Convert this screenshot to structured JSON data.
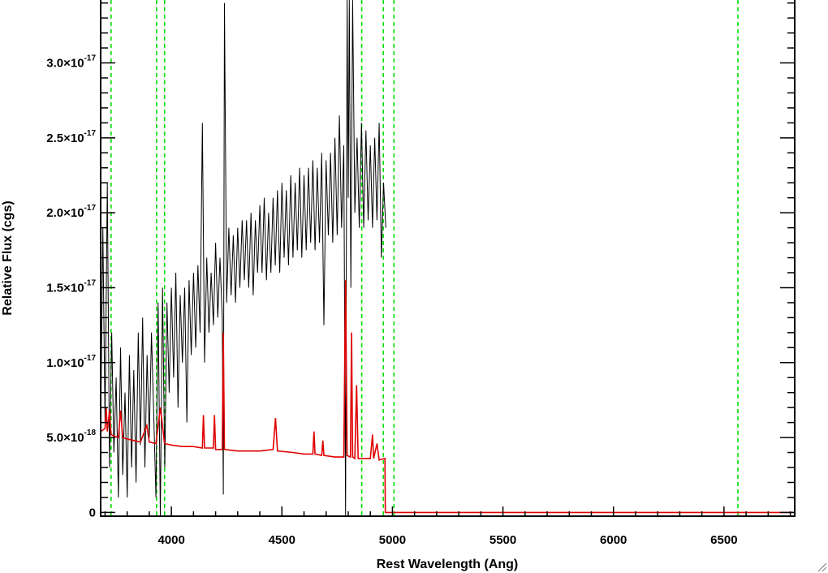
{
  "chart_data": {
    "type": "line",
    "xlabel": "Rest Wavelength (Ang)",
    "ylabel": "Relative Flux (cgs)",
    "xlim": [
      3680,
      6820
    ],
    "ylim": [
      -2.5e-19,
      3.42e-17
    ],
    "x_ticks": [
      {
        "value": 4000,
        "label": "4000"
      },
      {
        "value": 4500,
        "label": "4500"
      },
      {
        "value": 5000,
        "label": "5000"
      },
      {
        "value": 5500,
        "label": "5500"
      },
      {
        "value": 6000,
        "label": "6000"
      },
      {
        "value": 6500,
        "label": "6500"
      }
    ],
    "y_ticks": [
      {
        "value": 0,
        "mantissa": "0",
        "exponent": ""
      },
      {
        "value": 5e-18,
        "mantissa": "5.0×10",
        "exponent": "-18"
      },
      {
        "value": 1e-17,
        "mantissa": "1.0×10",
        "exponent": "-17"
      },
      {
        "value": 1.5e-17,
        "mantissa": "1.5×10",
        "exponent": "-17"
      },
      {
        "value": 2e-17,
        "mantissa": "2.0×10",
        "exponent": "-17"
      },
      {
        "value": 2.5e-17,
        "mantissa": "2.5×10",
        "exponent": "-17"
      },
      {
        "value": 3e-17,
        "mantissa": "3.0×10",
        "exponent": "-17"
      }
    ],
    "grid": false,
    "reference_lines": {
      "orientation": "vertical",
      "style": "dashed",
      "color": "#00dd00",
      "x": [
        3727,
        3933,
        3969,
        4861,
        4959,
        5007,
        6563
      ]
    },
    "series": [
      {
        "role": "observed spectrum",
        "color": "#000000",
        "points": [
          [
            3680,
            5.2e-18
          ],
          [
            3690,
            1.9e-17
          ],
          [
            3700,
            6e-18
          ],
          [
            3710,
            2.2e-17
          ],
          [
            3720,
            3e-18
          ],
          [
            3730,
            1.2e-17
          ],
          [
            3740,
            4e-18
          ],
          [
            3750,
            9e-18
          ],
          [
            3760,
            1e-18
          ],
          [
            3770,
            1.1e-17
          ],
          [
            3780,
            2.5e-18
          ],
          [
            3790,
            8e-18
          ],
          [
            3800,
            1e-18
          ],
          [
            3810,
            1.05e-17
          ],
          [
            3820,
            3e-18
          ],
          [
            3830,
            9.5e-18
          ],
          [
            3840,
            2e-18
          ],
          [
            3850,
            1.2e-17
          ],
          [
            3860,
            4.5e-18
          ],
          [
            3870,
            1.3e-17
          ],
          [
            3880,
            3e-18
          ],
          [
            3890,
            1.05e-17
          ],
          [
            3900,
            5e-18
          ],
          [
            3910,
            1.2e-17
          ],
          [
            3920,
            6.5e-18
          ],
          [
            3930,
            1e-18
          ],
          [
            3940,
            1.4e-17
          ],
          [
            3950,
            -2e-19
          ],
          [
            3960,
            1.5e-17
          ],
          [
            3970,
            3e-18
          ],
          [
            3980,
            1.4e-17
          ],
          [
            3990,
            8e-18
          ],
          [
            4000,
            1.5e-17
          ],
          [
            4010,
            9e-18
          ],
          [
            4020,
            1.6e-17
          ],
          [
            4030,
            7e-18
          ],
          [
            4040,
            1.45e-17
          ],
          [
            4050,
            1e-17
          ],
          [
            4060,
            1.5e-17
          ],
          [
            4070,
            6e-18
          ],
          [
            4080,
            1.55e-17
          ],
          [
            4090,
            1.05e-17
          ],
          [
            4100,
            1.6e-17
          ],
          [
            4110,
            1.1e-17
          ],
          [
            4120,
            1.65e-17
          ],
          [
            4130,
            1.2e-17
          ],
          [
            4140,
            2.6e-17
          ],
          [
            4150,
            1e-17
          ],
          [
            4160,
            1.7e-17
          ],
          [
            4170,
            1.2e-17
          ],
          [
            4180,
            1.6e-17
          ],
          [
            4190,
            1.25e-17
          ],
          [
            4200,
            1.8e-17
          ],
          [
            4210,
            1.3e-17
          ],
          [
            4220,
            1.7e-17
          ],
          [
            4230,
            1.3e-17
          ],
          [
            4235,
            1.2e-18
          ],
          [
            4240,
            3.4e-17
          ],
          [
            4250,
            1.4e-17
          ],
          [
            4260,
            1.9e-17
          ],
          [
            4270,
            1.45e-17
          ],
          [
            4280,
            1.85e-17
          ],
          [
            4290,
            1.4e-17
          ],
          [
            4300,
            1.9e-17
          ],
          [
            4310,
            1.5e-17
          ],
          [
            4320,
            1.95e-17
          ],
          [
            4330,
            1.55e-17
          ],
          [
            4340,
            1.95e-17
          ],
          [
            4350,
            1.5e-17
          ],
          [
            4360,
            2e-17
          ],
          [
            4370,
            1.45e-17
          ],
          [
            4380,
            1.95e-17
          ],
          [
            4390,
            1.6e-17
          ],
          [
            4400,
            2.05e-17
          ],
          [
            4410,
            1.6e-17
          ],
          [
            4420,
            2.1e-17
          ],
          [
            4430,
            1.55e-17
          ],
          [
            4440,
            2e-17
          ],
          [
            4450,
            1.6e-17
          ],
          [
            4460,
            2.1e-17
          ],
          [
            4470,
            1.65e-17
          ],
          [
            4480,
            2.15e-17
          ],
          [
            4490,
            1.6e-17
          ],
          [
            4500,
            2.2e-17
          ],
          [
            4510,
            1.7e-17
          ],
          [
            4520,
            2.15e-17
          ],
          [
            4530,
            1.65e-17
          ],
          [
            4540,
            2.25e-17
          ],
          [
            4550,
            1.7e-17
          ],
          [
            4560,
            2.2e-17
          ],
          [
            4570,
            1.75e-17
          ],
          [
            4580,
            2.3e-17
          ],
          [
            4590,
            1.7e-17
          ],
          [
            4600,
            2.25e-17
          ],
          [
            4610,
            1.75e-17
          ],
          [
            4620,
            2.3e-17
          ],
          [
            4630,
            1.8e-17
          ],
          [
            4640,
            2.35e-17
          ],
          [
            4650,
            1.75e-17
          ],
          [
            4660,
            2.3e-17
          ],
          [
            4670,
            1.8e-17
          ],
          [
            4680,
            2.4e-17
          ],
          [
            4690,
            1.25e-17
          ],
          [
            4700,
            2.35e-17
          ],
          [
            4710,
            1.85e-17
          ],
          [
            4720,
            2.4e-17
          ],
          [
            4730,
            1.8e-17
          ],
          [
            4740,
            2.5e-17
          ],
          [
            4750,
            1.85e-17
          ],
          [
            4760,
            2.65e-17
          ],
          [
            4770,
            1.9e-17
          ],
          [
            4780,
            2.45e-17
          ],
          [
            4788,
            -2.5e-19
          ],
          [
            4795,
            3.42e-17
          ],
          [
            4800,
            2.1e-17
          ],
          [
            4805,
            3.42e-17
          ],
          [
            4812,
            1.5e-17
          ],
          [
            4820,
            3.42e-17
          ],
          [
            4830,
            2e-17
          ],
          [
            4840,
            2.5e-17
          ],
          [
            4850,
            1.9e-17
          ],
          [
            4860,
            2.6e-17
          ],
          [
            4870,
            1.9e-17
          ],
          [
            4880,
            2.55e-17
          ],
          [
            4890,
            1.95e-17
          ],
          [
            4900,
            2.45e-17
          ],
          [
            4910,
            1.9e-17
          ],
          [
            4920,
            2.5e-17
          ],
          [
            4930,
            1.95e-17
          ],
          [
            4940,
            2.6e-17
          ],
          [
            4950,
            1.7e-17
          ],
          [
            4960,
            2.2e-17
          ],
          [
            4970,
            1.9e-17
          ]
        ]
      },
      {
        "role": "model spectrum",
        "color": "#e00000",
        "points": [
          [
            3680,
            5.4e-18
          ],
          [
            3700,
            5.6e-18
          ],
          [
            3705,
            7e-18
          ],
          [
            3710,
            5.4e-18
          ],
          [
            3720,
            6.8e-18
          ],
          [
            3727,
            5.2e-18
          ],
          [
            3740,
            5.1e-18
          ],
          [
            3760,
            5e-18
          ],
          [
            3770,
            6.8e-18
          ],
          [
            3780,
            5e-18
          ],
          [
            3800,
            4.9e-18
          ],
          [
            3830,
            4.8e-18
          ],
          [
            3860,
            4.7e-18
          ],
          [
            3889,
            5.8e-18
          ],
          [
            3900,
            4.7e-18
          ],
          [
            3930,
            4.6e-18
          ],
          [
            3950,
            7e-18
          ],
          [
            3969,
            4.6e-18
          ],
          [
            4000,
            4.5e-18
          ],
          [
            4050,
            4.4e-18
          ],
          [
            4100,
            4.4e-18
          ],
          [
            4140,
            4.3e-18
          ],
          [
            4145,
            6.5e-18
          ],
          [
            4150,
            4.3e-18
          ],
          [
            4190,
            4.3e-18
          ],
          [
            4195,
            6.5e-18
          ],
          [
            4200,
            4.2e-18
          ],
          [
            4230,
            4.2e-18
          ],
          [
            4235,
            1.2e-17
          ],
          [
            4240,
            4.2e-18
          ],
          [
            4300,
            4.1e-18
          ],
          [
            4400,
            4.1e-18
          ],
          [
            4460,
            4.2e-18
          ],
          [
            4471,
            6.3e-18
          ],
          [
            4480,
            4.1e-18
          ],
          [
            4550,
            4e-18
          ],
          [
            4600,
            3.9e-18
          ],
          [
            4640,
            3.9e-18
          ],
          [
            4645,
            5.4e-18
          ],
          [
            4650,
            3.9e-18
          ],
          [
            4680,
            3.8e-18
          ],
          [
            4685,
            4.8e-18
          ],
          [
            4690,
            3.8e-18
          ],
          [
            4740,
            3.7e-18
          ],
          [
            4780,
            3.7e-18
          ],
          [
            4788,
            1.55e-17
          ],
          [
            4795,
            3.8e-18
          ],
          [
            4810,
            3.7e-18
          ],
          [
            4815,
            1.2e-17
          ],
          [
            4820,
            3.7e-18
          ],
          [
            4830,
            3.6e-18
          ],
          [
            4838,
            8.5e-18
          ],
          [
            4845,
            3.6e-18
          ],
          [
            4900,
            3.6e-18
          ],
          [
            4910,
            5.2e-18
          ],
          [
            4915,
            3.6e-18
          ],
          [
            4930,
            4.6e-18
          ],
          [
            4940,
            3.5e-18
          ],
          [
            4966,
            3.6e-18
          ],
          [
            4968,
            0
          ],
          [
            6820,
            0
          ]
        ]
      }
    ]
  }
}
